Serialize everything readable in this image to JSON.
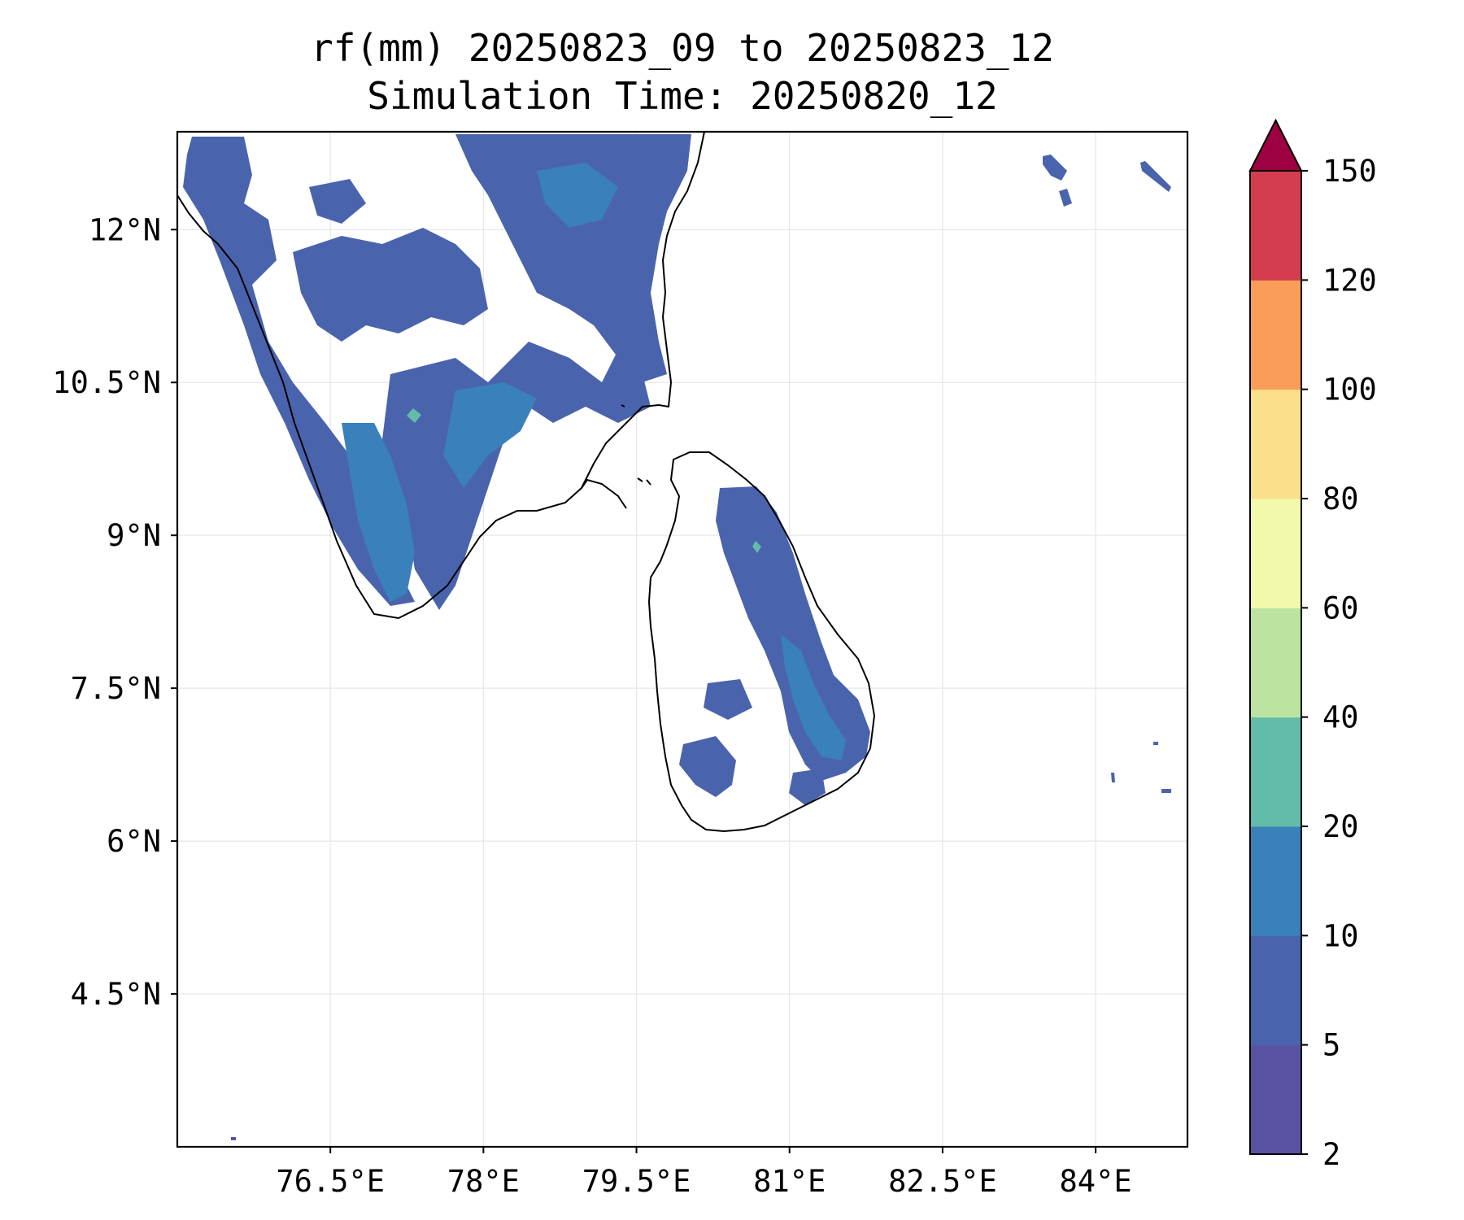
{
  "title_line1": "rf(mm) 20250823_09 to 20250823_12",
  "title_line2": "Simulation Time: 20250820_12",
  "map": {
    "lon_range": [
      75.0,
      84.9
    ],
    "lat_range": [
      3.0,
      12.96
    ],
    "lon_ticks": [
      {
        "value": 76.5,
        "label": "76.5°E"
      },
      {
        "value": 78.0,
        "label": "78°E"
      },
      {
        "value": 79.5,
        "label": "79.5°E"
      },
      {
        "value": 81.0,
        "label": "81°E"
      },
      {
        "value": 82.5,
        "label": "82.5°E"
      },
      {
        "value": 84.0,
        "label": "84°E"
      }
    ],
    "lat_ticks": [
      {
        "value": 12.0,
        "label": "12°N"
      },
      {
        "value": 10.5,
        "label": "10.5°N"
      },
      {
        "value": 9.0,
        "label": "9°N"
      },
      {
        "value": 7.5,
        "label": "7.5°N"
      },
      {
        "value": 6.0,
        "label": "6°N"
      },
      {
        "value": 4.5,
        "label": "4.5°N"
      }
    ],
    "grid": true
  },
  "colorbar": {
    "levels": [
      "2",
      "5",
      "10",
      "20",
      "40",
      "60",
      "80",
      "100",
      "120",
      "150"
    ],
    "colors": [
      "#5a53a4",
      "#4a63ad",
      "#3a80bb",
      "#62bca9",
      "#bde3a0",
      "#f2f9ac",
      "#fcdf8a",
      "#f99d59",
      "#d43d4f"
    ],
    "extend_color": "#9e0142",
    "extend": "max"
  },
  "legend_colors": {
    "2-5": "#5a53a4",
    "5-10": "#4a63ad",
    "10-20": "#3a80bb",
    "20-40": "#62bca9"
  }
}
